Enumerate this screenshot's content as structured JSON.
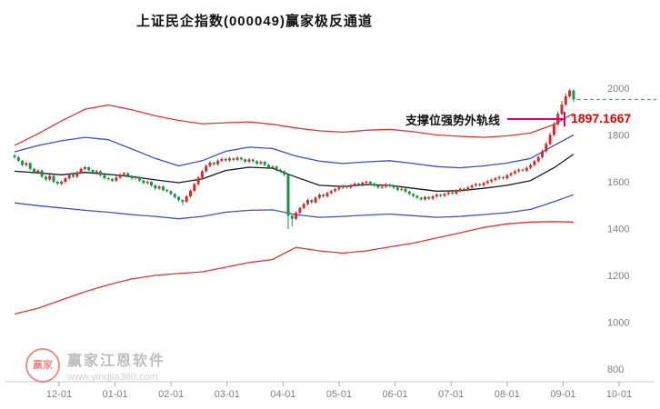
{
  "title": "上证民企指数(000049)赢家极反通道",
  "annotation": {
    "label": "支撑位强势外轨线",
    "value": "1897.1667"
  },
  "watermark": {
    "logo_text": "赢家",
    "name": "赢家江恩软件",
    "url": "www.yingjia360.com"
  },
  "colors": {
    "up": "#d42b2b",
    "down": "#169549",
    "band_red": "#e63232",
    "band_blue": "#3c50c8",
    "band_mid": "#1a1a1a",
    "price_line": "#2fa22f",
    "support_line": "#d6007f",
    "value_text": "#e60000",
    "axis_text": "#808080"
  },
  "chart_data": {
    "type": "candlestick",
    "title": "上证民企指数(000049)赢家极反通道",
    "ylim": [
      800,
      2050
    ],
    "y_ticks": [
      2000,
      1800,
      1600,
      1400,
      1200,
      1000,
      800
    ],
    "x_ticks": [
      "12-01",
      "01-01",
      "02-01",
      "03-01",
      "04-01",
      "05-01",
      "06-01",
      "07-01",
      "08-01",
      "09-01",
      "10-01"
    ],
    "last_price_line": 1952,
    "support_outer_line_value": 1897.1667,
    "grid": "off",
    "legend": "none",
    "candles": [
      [
        1712,
        1705,
        1698,
        1718
      ],
      [
        1705,
        1690,
        1684,
        1709
      ],
      [
        1690,
        1672,
        1666,
        1694
      ],
      [
        1672,
        1680,
        1666,
        1686
      ],
      [
        1680,
        1655,
        1649,
        1684
      ],
      [
        1655,
        1640,
        1634,
        1659
      ],
      [
        1640,
        1648,
        1634,
        1654
      ],
      [
        1648,
        1622,
        1616,
        1652
      ],
      [
        1622,
        1610,
        1604,
        1626
      ],
      [
        1610,
        1625,
        1604,
        1631
      ],
      [
        1625,
        1600,
        1594,
        1629
      ],
      [
        1600,
        1592,
        1586,
        1604
      ],
      [
        1592,
        1600,
        1586,
        1606
      ],
      [
        1600,
        1615,
        1594,
        1621
      ],
      [
        1615,
        1630,
        1609,
        1636
      ],
      [
        1630,
        1622,
        1616,
        1634
      ],
      [
        1622,
        1640,
        1616,
        1646
      ],
      [
        1640,
        1655,
        1634,
        1661
      ],
      [
        1655,
        1662,
        1649,
        1668
      ],
      [
        1662,
        1650,
        1644,
        1666
      ],
      [
        1650,
        1638,
        1632,
        1654
      ],
      [
        1638,
        1645,
        1632,
        1651
      ],
      [
        1645,
        1628,
        1622,
        1649
      ],
      [
        1628,
        1615,
        1609,
        1632
      ],
      [
        1615,
        1612,
        1606,
        1621
      ],
      [
        1612,
        1605,
        1599,
        1616
      ],
      [
        1605,
        1618,
        1599,
        1624
      ],
      [
        1618,
        1630,
        1612,
        1636
      ],
      [
        1630,
        1636,
        1624,
        1642
      ],
      [
        1636,
        1625,
        1619,
        1640
      ],
      [
        1625,
        1615,
        1609,
        1629
      ],
      [
        1615,
        1620,
        1609,
        1626
      ],
      [
        1620,
        1605,
        1599,
        1624
      ],
      [
        1605,
        1595,
        1589,
        1609
      ],
      [
        1595,
        1600,
        1589,
        1606
      ],
      [
        1600,
        1585,
        1579,
        1604
      ],
      [
        1585,
        1572,
        1566,
        1589
      ],
      [
        1572,
        1580,
        1566,
        1586
      ],
      [
        1580,
        1565,
        1559,
        1584
      ],
      [
        1565,
        1560,
        1554,
        1569
      ],
      [
        1560,
        1548,
        1542,
        1564
      ],
      [
        1548,
        1535,
        1529,
        1552
      ],
      [
        1535,
        1522,
        1516,
        1539
      ],
      [
        1522,
        1515,
        1500,
        1526
      ],
      [
        1515,
        1538,
        1509,
        1544
      ],
      [
        1538,
        1562,
        1532,
        1568
      ],
      [
        1562,
        1590,
        1556,
        1596
      ],
      [
        1590,
        1618,
        1584,
        1624
      ],
      [
        1618,
        1645,
        1612,
        1651
      ],
      [
        1645,
        1668,
        1639,
        1674
      ],
      [
        1668,
        1682,
        1662,
        1688
      ],
      [
        1682,
        1675,
        1669,
        1686
      ],
      [
        1675,
        1690,
        1669,
        1696
      ],
      [
        1690,
        1698,
        1684,
        1704
      ],
      [
        1698,
        1692,
        1686,
        1702
      ],
      [
        1692,
        1700,
        1686,
        1706
      ],
      [
        1700,
        1694,
        1688,
        1704
      ],
      [
        1694,
        1703,
        1688,
        1709
      ],
      [
        1703,
        1696,
        1690,
        1707
      ],
      [
        1696,
        1686,
        1680,
        1700
      ],
      [
        1686,
        1695,
        1680,
        1701
      ],
      [
        1695,
        1688,
        1682,
        1699
      ],
      [
        1688,
        1678,
        1672,
        1692
      ],
      [
        1678,
        1685,
        1672,
        1691
      ],
      [
        1685,
        1672,
        1666,
        1689
      ],
      [
        1672,
        1660,
        1654,
        1676
      ],
      [
        1660,
        1665,
        1654,
        1671
      ],
      [
        1665,
        1652,
        1646,
        1669
      ],
      [
        1652,
        1645,
        1639,
        1656
      ],
      [
        1645,
        1630,
        1624,
        1649
      ],
      [
        1630,
        1455,
        1398,
        1634
      ],
      [
        1455,
        1442,
        1410,
        1460
      ],
      [
        1442,
        1468,
        1436,
        1474
      ],
      [
        1468,
        1488,
        1462,
        1494
      ],
      [
        1488,
        1505,
        1482,
        1511
      ],
      [
        1505,
        1522,
        1499,
        1528
      ],
      [
        1522,
        1512,
        1506,
        1526
      ],
      [
        1512,
        1532,
        1506,
        1538
      ],
      [
        1532,
        1545,
        1526,
        1551
      ],
      [
        1545,
        1538,
        1532,
        1549
      ],
      [
        1538,
        1552,
        1532,
        1558
      ],
      [
        1552,
        1560,
        1546,
        1566
      ],
      [
        1560,
        1568,
        1554,
        1574
      ],
      [
        1568,
        1575,
        1562,
        1581
      ],
      [
        1575,
        1582,
        1569,
        1588
      ],
      [
        1582,
        1576,
        1570,
        1586
      ],
      [
        1576,
        1586,
        1570,
        1592
      ],
      [
        1586,
        1592,
        1580,
        1598
      ],
      [
        1592,
        1587,
        1581,
        1596
      ],
      [
        1587,
        1596,
        1581,
        1602
      ],
      [
        1596,
        1600,
        1590,
        1606
      ],
      [
        1600,
        1592,
        1586,
        1604
      ],
      [
        1592,
        1584,
        1578,
        1596
      ],
      [
        1584,
        1576,
        1570,
        1588
      ],
      [
        1576,
        1580,
        1570,
        1586
      ],
      [
        1580,
        1588,
        1574,
        1594
      ],
      [
        1588,
        1582,
        1576,
        1592
      ],
      [
        1582,
        1575,
        1569,
        1586
      ],
      [
        1575,
        1566,
        1560,
        1579
      ],
      [
        1566,
        1570,
        1560,
        1576
      ],
      [
        1570,
        1558,
        1552,
        1574
      ],
      [
        1558,
        1548,
        1542,
        1562
      ],
      [
        1548,
        1540,
        1534,
        1552
      ],
      [
        1540,
        1532,
        1526,
        1544
      ],
      [
        1532,
        1525,
        1519,
        1536
      ],
      [
        1525,
        1535,
        1519,
        1541
      ],
      [
        1535,
        1528,
        1522,
        1539
      ],
      [
        1528,
        1538,
        1522,
        1544
      ],
      [
        1538,
        1545,
        1532,
        1551
      ],
      [
        1545,
        1540,
        1534,
        1549
      ],
      [
        1540,
        1548,
        1534,
        1554
      ],
      [
        1548,
        1555,
        1542,
        1561
      ],
      [
        1555,
        1550,
        1544,
        1559
      ],
      [
        1550,
        1562,
        1544,
        1568
      ],
      [
        1562,
        1570,
        1556,
        1576
      ],
      [
        1570,
        1565,
        1559,
        1574
      ],
      [
        1565,
        1576,
        1559,
        1582
      ],
      [
        1576,
        1584,
        1570,
        1590
      ],
      [
        1584,
        1590,
        1578,
        1596
      ],
      [
        1590,
        1585,
        1579,
        1594
      ],
      [
        1585,
        1595,
        1579,
        1601
      ],
      [
        1595,
        1602,
        1589,
        1608
      ],
      [
        1602,
        1608,
        1596,
        1614
      ],
      [
        1608,
        1615,
        1602,
        1621
      ],
      [
        1615,
        1620,
        1609,
        1626
      ],
      [
        1620,
        1615,
        1609,
        1624
      ],
      [
        1615,
        1628,
        1609,
        1634
      ],
      [
        1628,
        1636,
        1622,
        1642
      ],
      [
        1636,
        1645,
        1630,
        1651
      ],
      [
        1645,
        1652,
        1639,
        1658
      ],
      [
        1652,
        1648,
        1642,
        1656
      ],
      [
        1648,
        1660,
        1642,
        1666
      ],
      [
        1660,
        1672,
        1654,
        1678
      ],
      [
        1672,
        1688,
        1666,
        1694
      ],
      [
        1688,
        1705,
        1682,
        1712
      ],
      [
        1705,
        1730,
        1699,
        1738
      ],
      [
        1730,
        1762,
        1724,
        1770
      ],
      [
        1762,
        1800,
        1756,
        1810
      ],
      [
        1800,
        1845,
        1794,
        1855
      ],
      [
        1845,
        1890,
        1839,
        1900
      ],
      [
        1890,
        1930,
        1884,
        1945
      ],
      [
        1930,
        1965,
        1924,
        1978
      ],
      [
        1965,
        1990,
        1958,
        1996
      ],
      [
        1990,
        1952,
        1940,
        1994
      ]
    ],
    "bands": {
      "sample_step": 6,
      "upper_red": [
        1755,
        1805,
        1860,
        1910,
        1928,
        1908,
        1882,
        1862,
        1848,
        1852,
        1856,
        1846,
        1830,
        1818,
        1812,
        1820,
        1824,
        1814,
        1800,
        1794,
        1790,
        1796,
        1808,
        1845,
        1892
      ],
      "upper_blue": [
        1728,
        1755,
        1775,
        1790,
        1780,
        1740,
        1700,
        1668,
        1690,
        1730,
        1748,
        1742,
        1710,
        1688,
        1678,
        1685,
        1690,
        1678,
        1665,
        1660,
        1668,
        1680,
        1700,
        1755,
        1800
      ],
      "middle": [
        1645,
        1638,
        1630,
        1640,
        1632,
        1622,
        1608,
        1596,
        1612,
        1648,
        1662,
        1658,
        1620,
        1585,
        1580,
        1588,
        1585,
        1572,
        1560,
        1562,
        1572,
        1585,
        1605,
        1660,
        1718
      ],
      "lower_blue": [
        1510,
        1498,
        1488,
        1478,
        1470,
        1460,
        1452,
        1442,
        1452,
        1470,
        1478,
        1480,
        1460,
        1448,
        1452,
        1458,
        1462,
        1455,
        1448,
        1452,
        1460,
        1468,
        1482,
        1515,
        1545
      ],
      "lower_red": [
        1035,
        1060,
        1095,
        1130,
        1160,
        1185,
        1200,
        1208,
        1215,
        1235,
        1255,
        1268,
        1320,
        1305,
        1295,
        1305,
        1322,
        1338,
        1360,
        1382,
        1405,
        1420,
        1428,
        1430,
        1428
      ]
    }
  }
}
